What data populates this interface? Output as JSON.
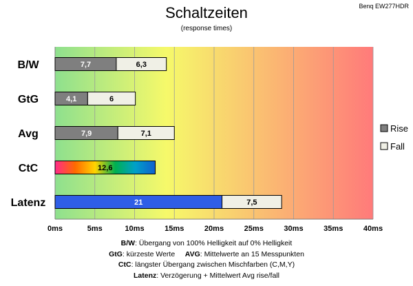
{
  "header": {
    "title": "Schaltzeiten",
    "subtitle": "(response times)",
    "model": "Benq EW277HDR"
  },
  "colors": {
    "rise": "#7f7f7f",
    "fall": "#f0f0e6",
    "latenz_rise": "#2f5ee6",
    "gradient": [
      "#8ee08e",
      "#f6f96a",
      "#ff7a7a"
    ],
    "ctc_gradient": [
      "#ff2a8a",
      "#ff6a00",
      "#ffd400",
      "#00b050",
      "#00a0c8",
      "#1060d0"
    ]
  },
  "notes": [
    {
      "b1": "B/W",
      "t1": ":  Übergang von 100% Helligkeit auf 0% Helligkeit",
      "b2": "",
      "t2": ""
    },
    {
      "b1": "GtG",
      "t1": ": kürzeste  Werte",
      "b2": "AVG",
      "t2": ": Mittelwerte  an 15 Messpunkten"
    },
    {
      "b1": "CtC",
      "t1": ": längster Übergang  zwischen Mischfarben (C,M,Y)",
      "b2": "",
      "t2": ""
    },
    {
      "b1": "Latenz",
      "t1": ": Verzögerung  + Mittelwert Avg rise/fall",
      "b2": "",
      "t2": ""
    }
  ],
  "chart_data": {
    "type": "bar",
    "orientation": "horizontal",
    "stacked": true,
    "categories": [
      "B/W",
      "GtG",
      "Avg",
      "CtC",
      "Latenz"
    ],
    "series": [
      {
        "name": "Rise",
        "values": [
          7.7,
          4.1,
          7.9,
          12.6,
          21
        ],
        "labels": [
          "7,7",
          "4,1",
          "7,9",
          "12,6",
          "21"
        ]
      },
      {
        "name": "Fall",
        "values": [
          6.3,
          6,
          7.1,
          null,
          7.5
        ],
        "labels": [
          "6,3",
          "6",
          "7,1",
          "",
          "7,5"
        ]
      }
    ],
    "xticks": [
      "0ms",
      "5ms",
      "10ms",
      "15ms",
      "20ms",
      "25ms",
      "30ms",
      "35ms",
      "40ms"
    ],
    "xlim": [
      0,
      40
    ],
    "tick_step": 5,
    "grid": true,
    "legend": "right"
  }
}
